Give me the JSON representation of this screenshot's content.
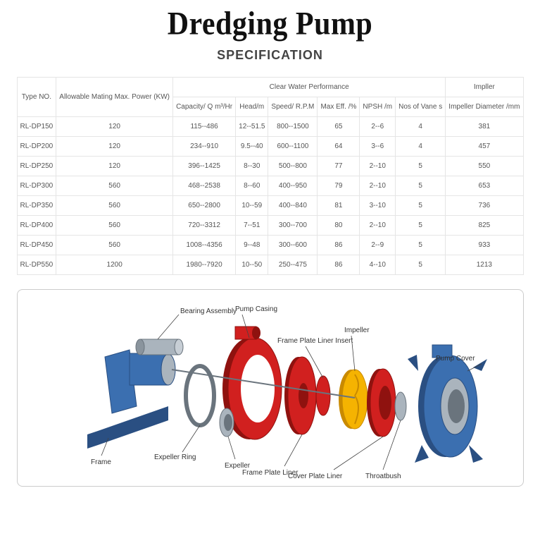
{
  "title": "Dredging Pump",
  "section": "SPECIFICATION",
  "colors": {
    "border": "#e5e5e5",
    "text": "#555555",
    "frame_blue": "#3b6fb0",
    "frame_blue_dark": "#2a4f82",
    "casing_red": "#d1201f",
    "casing_red_dark": "#8f120f",
    "impeller_yellow": "#f5b301",
    "cover_blue": "#3b6fb0",
    "steel_grey": "#aab4bd",
    "background": "#ffffff",
    "diagram_border": "#cccccc"
  },
  "table": {
    "header_group": {
      "type_no": "Type NO.",
      "power": "Allowable Mating Max. Power\n(KW)",
      "cwp": "Clear Water Performance",
      "impeller": "Impller"
    },
    "header_sub": {
      "capacity": "Capacity/\nQ m³/Hr",
      "head": "Head/m",
      "speed": "Speed/\nR.P.M",
      "maxeff": "Max Eff.\n/%",
      "npsh": "NPSH\n/m",
      "vanes": "Nos of Vane s",
      "impdia": "Impeller\nDiameter\n/mm"
    },
    "rows": [
      {
        "type": "RL-DP150",
        "power": "120",
        "cap": "115--486",
        "head": "12--51.5",
        "speed": "800--1500",
        "eff": "65",
        "npsh": "2--6",
        "vanes": "4",
        "dia": "381"
      },
      {
        "type": "RL-DP200",
        "power": "120",
        "cap": "234--910",
        "head": "9.5--40",
        "speed": "600--1100",
        "eff": "64",
        "npsh": "3--6",
        "vanes": "4",
        "dia": "457"
      },
      {
        "type": "RL-DP250",
        "power": "120",
        "cap": "396--1425",
        "head": "8--30",
        "speed": "500--800",
        "eff": "77",
        "npsh": "2--10",
        "vanes": "5",
        "dia": "550"
      },
      {
        "type": "RL-DP300",
        "power": "560",
        "cap": "468--2538",
        "head": "8--60",
        "speed": "400--950",
        "eff": "79",
        "npsh": "2--10",
        "vanes": "5",
        "dia": "653"
      },
      {
        "type": "RL-DP350",
        "power": "560",
        "cap": "650--2800",
        "head": "10--59",
        "speed": "400--840",
        "eff": "81",
        "npsh": "3--10",
        "vanes": "5",
        "dia": "736"
      },
      {
        "type": "RL-DP400",
        "power": "560",
        "cap": "720--3312",
        "head": "7--51",
        "speed": "300--700",
        "eff": "80",
        "npsh": "2--10",
        "vanes": "5",
        "dia": "825"
      },
      {
        "type": "RL-DP450",
        "power": "560",
        "cap": "1008--4356",
        "head": "9--48",
        "speed": "300--600",
        "eff": "86",
        "npsh": "2--9",
        "vanes": "5",
        "dia": "933"
      },
      {
        "type": "RL-DP550",
        "power": "1200",
        "cap": "1980--7920",
        "head": "10--50",
        "speed": "250--475",
        "eff": "86",
        "npsh": "4--10",
        "vanes": "5",
        "dia": "1213"
      }
    ]
  },
  "diagram": {
    "labels": {
      "bearing_assembly": "Bearing Assembly",
      "pump_casing": "Pump Casing",
      "frame": "Frame",
      "expeller_ring": "Expeller Ring",
      "expeller": "Expeller",
      "frame_plate_liner": "Frame Plate Liner",
      "frame_plate_liner_insert": "Frame Plate Liner Insert",
      "impeller": "Impeller",
      "cover_plate_liner": "Cover Plate Liner",
      "throatbush": "Throatbush",
      "pump_cover": "Pump Cover"
    }
  }
}
